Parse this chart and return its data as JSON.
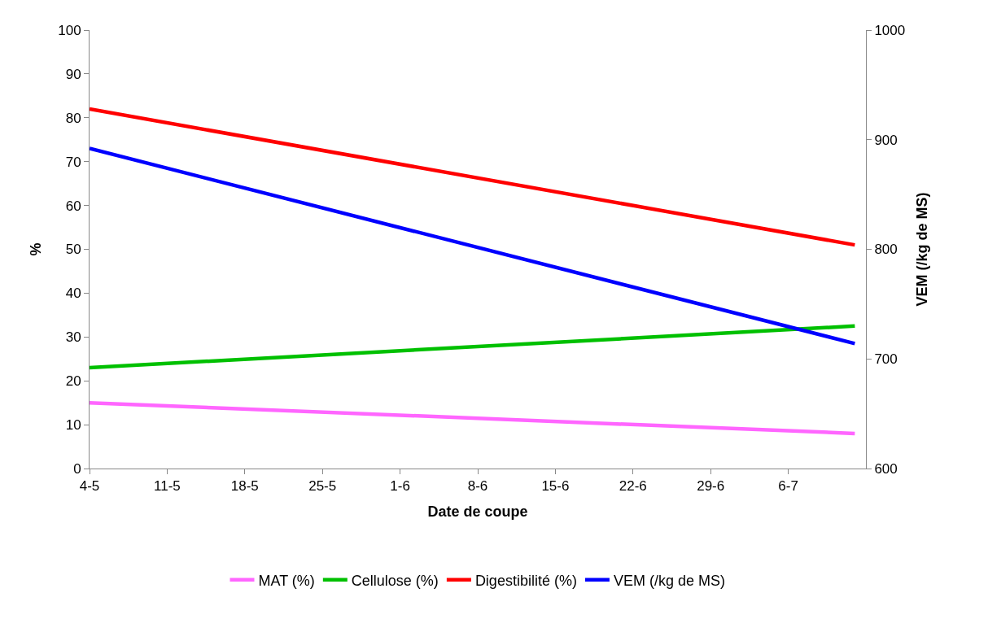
{
  "chart_data": {
    "type": "line",
    "xlabel": "Date de coupe",
    "ylabel": "%",
    "y2label": "VEM (/kg de MS)",
    "x": [
      "--05-04",
      "--07-12"
    ],
    "series": [
      {
        "name": "MAT (%)",
        "color": "#ff66ff",
        "values": [
          15,
          8
        ]
      },
      {
        "name": "Cellulose (%)",
        "color": "#00c000",
        "values": [
          23,
          32.5
        ]
      },
      {
        "name": "Digestibilité (%)",
        "color": "#ff0000",
        "values": [
          82,
          51
        ]
      },
      {
        "name": "VEM (/kg de MS)",
        "color": "#0000ff",
        "values": [
          892,
          714
        ],
        "axis": "y2"
      }
    ],
    "xlim": [
      "--05-04",
      "--07-13"
    ],
    "xticks": [
      {
        "value": "--05-04",
        "label": "4-5"
      },
      {
        "value": "--05-11",
        "label": "11-5"
      },
      {
        "value": "--05-18",
        "label": "18-5"
      },
      {
        "value": "--05-25",
        "label": "25-5"
      },
      {
        "value": "--06-01",
        "label": "1-6"
      },
      {
        "value": "--06-08",
        "label": "8-6"
      },
      {
        "value": "--06-15",
        "label": "15-6"
      },
      {
        "value": "--06-22",
        "label": "22-6"
      },
      {
        "value": "--06-29",
        "label": "29-6"
      },
      {
        "value": "--07-06",
        "label": "6-7"
      }
    ],
    "ylim": [
      0,
      100
    ],
    "yticks": [
      0,
      10,
      20,
      30,
      40,
      50,
      60,
      70,
      80,
      90,
      100
    ],
    "y2lim": [
      600,
      1000
    ],
    "y2ticks": [
      600,
      700,
      800,
      900,
      1000
    ],
    "legend": "bottom",
    "marker": "none",
    "line_style": "solid"
  }
}
